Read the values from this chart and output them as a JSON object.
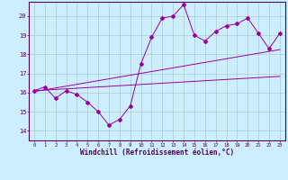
{
  "xlabel": "Windchill (Refroidissement éolien,°C)",
  "bg_color": "#cceeff",
  "grid_color": "#aacccc",
  "line_color": "#990099",
  "x_ticks": [
    0,
    1,
    2,
    3,
    4,
    5,
    6,
    7,
    8,
    9,
    10,
    11,
    12,
    13,
    14,
    15,
    16,
    17,
    18,
    19,
    20,
    21,
    22,
    23
  ],
  "y_ticks": [
    14,
    15,
    16,
    17,
    18,
    19,
    20
  ],
  "xlim": [
    -0.5,
    23.5
  ],
  "ylim": [
    13.5,
    20.75
  ],
  "series1_x": [
    0,
    1,
    2,
    3,
    4,
    5,
    6,
    7,
    8,
    9,
    10,
    11,
    12,
    13,
    14,
    15,
    16,
    17,
    18,
    19,
    20,
    21,
    22,
    23
  ],
  "series1_y": [
    16.1,
    16.3,
    15.7,
    16.1,
    15.9,
    15.5,
    15.0,
    14.3,
    14.6,
    15.3,
    17.5,
    18.9,
    19.9,
    20.0,
    20.6,
    19.0,
    18.7,
    19.2,
    19.5,
    19.6,
    19.9,
    19.1,
    18.3,
    19.1
  ],
  "series2_x": [
    0,
    23
  ],
  "series2_y": [
    16.05,
    18.25
  ],
  "series3_x": [
    0,
    23
  ],
  "series3_y": [
    16.1,
    16.85
  ]
}
